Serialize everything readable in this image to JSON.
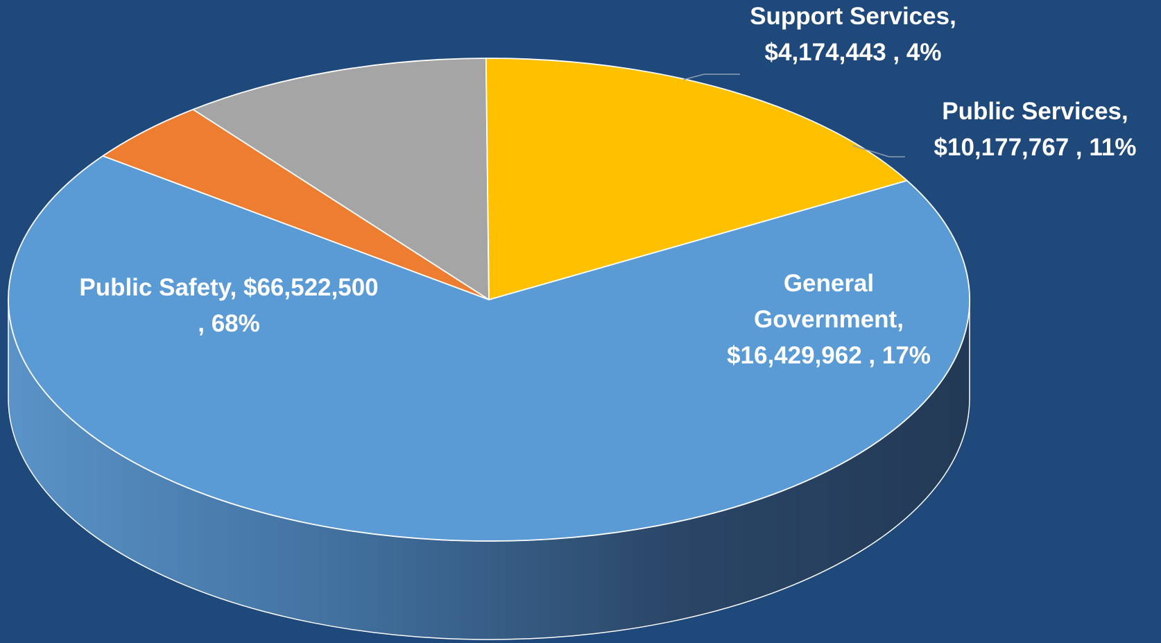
{
  "colors": {
    "background": "#1F487B",
    "public_safety": "#5B9BD5",
    "support_services": "#ED7D31",
    "public_services": "#A5A5A5",
    "general_government": "#FFC000"
  },
  "chart_data": {
    "type": "pie",
    "style": "3d",
    "title": "",
    "legend": "none",
    "slices": [
      {
        "name": "Public Safety",
        "value": 66522500,
        "percent": 68,
        "color": "#5B9BD5"
      },
      {
        "name": "Support Services",
        "value": 4174443,
        "percent": 4,
        "color": "#ED7D31"
      },
      {
        "name": "Public Services",
        "value": 10177767,
        "percent": 11,
        "color": "#A5A5A5"
      },
      {
        "name": "General Government",
        "value": 16429962,
        "percent": 17,
        "color": "#FFC000"
      }
    ],
    "labels": {
      "public_safety": [
        "Public Safety, $66,522,500",
        ", 68%"
      ],
      "support_services": [
        "Support Services,",
        "$4,174,443 , 4%"
      ],
      "public_services": [
        "Public Services,",
        "$10,177,767 , 11%"
      ],
      "general_government": [
        "General",
        "Government,",
        "$16,429,962 , 17%"
      ]
    }
  }
}
